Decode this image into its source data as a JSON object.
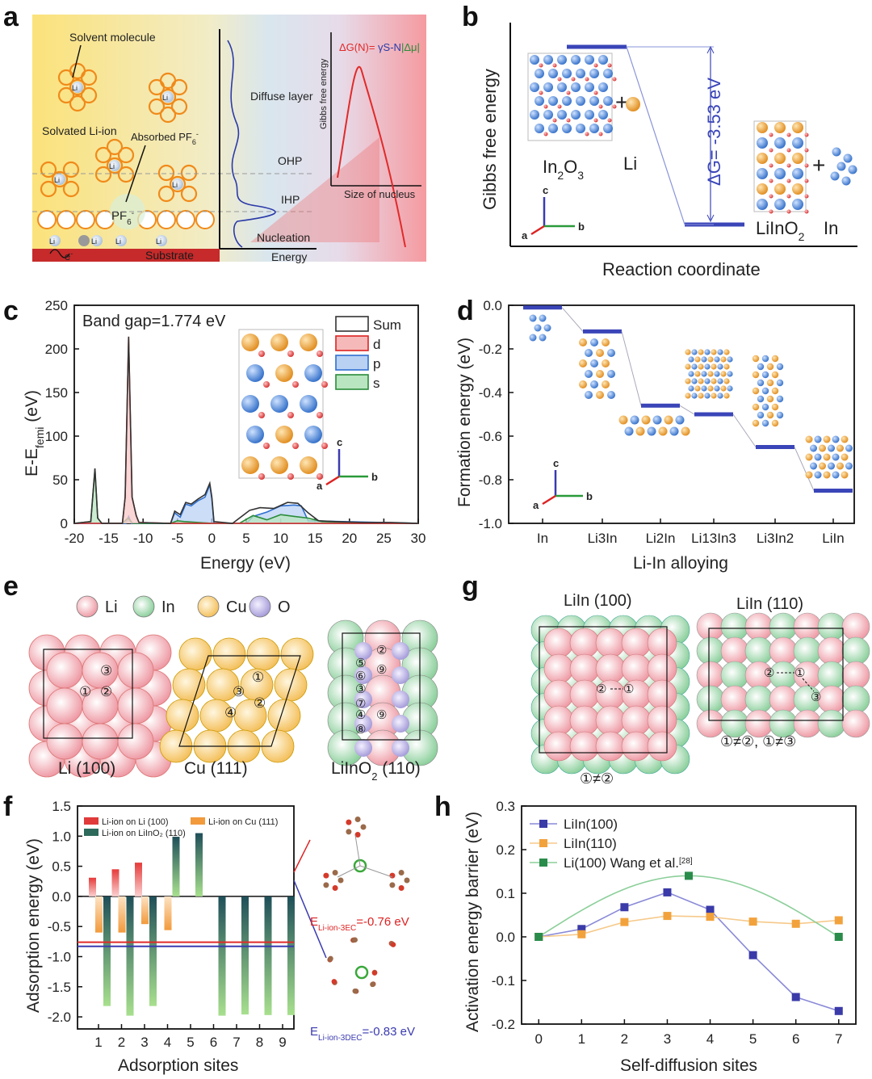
{
  "panel_labels": {
    "a": "a",
    "b": "b",
    "c": "c",
    "d": "d",
    "e": "e",
    "f": "f",
    "g": "g",
    "h": "h"
  },
  "panel_a": {
    "solvent_molecule": "Solvent molecule",
    "solvated_li_ion": "Solvated Li-ion",
    "absorbed_pf6": "Absorbed PF",
    "absorbed_pf6_sub": "6",
    "absorbed_pf6_sup": "-",
    "pf6": "PF",
    "pf6_sub": "6",
    "pf6_sup": "-",
    "li_plus": "Li",
    "electron": "e",
    "electron_sup": "-",
    "substrate": "Substrate",
    "diffuse_layer": "Diffuse layer",
    "ohp": "OHP",
    "ihp": "IHP",
    "nucleation": "Nucleation",
    "energy": "Energy",
    "gibbs_label": "Gibbs free energy",
    "size_of_nucleus": "Size of nucleus",
    "eq_part1": "ΔG(N)=",
    "eq_part2": " γS-N",
    "eq_part3": "|Δμ|"
  },
  "panel_b": {
    "ylabel": "Gibbs free energy",
    "xlabel": "Reaction coordinate",
    "in2o3": "In",
    "in2o3_sub1": "2",
    "in2o3_o": "O",
    "in2o3_sub2": "3",
    "li": "Li",
    "liino2": "LiInO",
    "liino2_sub": "2",
    "in": "In",
    "delta_g": "ΔG= -3.53 eV",
    "axis_c": "c",
    "axis_b": "b",
    "axis_a": "a"
  },
  "panel_c": {
    "band_gap": "Band gap=1.774 eV",
    "ylabel_main": "E-E",
    "ylabel_sub": "femi",
    "ylabel_unit": " (eV)",
    "xlabel": "Energy (eV)",
    "legend": [
      "Sum",
      "d",
      "p",
      "s"
    ],
    "axis_c": "c",
    "axis_b": "b",
    "axis_a": "a"
  },
  "panel_d": {
    "ylabel": "Formation energy (eV)",
    "xlabel": "Li-In alloying",
    "axis_c": "c",
    "axis_b": "b",
    "axis_a": "a"
  },
  "panel_e": {
    "legend": [
      "Li",
      "In",
      "Cu",
      "O"
    ],
    "li100": "Li (100)",
    "cu111": "Cu (111)",
    "liino2_110": "LiInO",
    "liino2_110_sub": "2",
    "liino2_110_rest": " (110)",
    "site_labels": [
      "①",
      "②",
      "③",
      "④",
      "⑤",
      "⑥",
      "⑦",
      "⑧",
      "⑨"
    ]
  },
  "panel_g": {
    "liin100": "LiIn (100)",
    "liin110": "LiIn (110)",
    "note_100": "①≠②",
    "note_110": "①≠②, ①≠③",
    "site_labels": [
      "①",
      "②",
      "③"
    ]
  },
  "panel_f": {
    "ylabel": "Adsorption energy (eV)",
    "xlabel": "Adsorption sites",
    "legend": [
      "Li-ion on Li (100)",
      "Li-ion on Cu (111)",
      "Li-ion on LiInO₂ (110)"
    ],
    "e3ec_label": "E",
    "e3ec_sub": "Li-ion-3EC",
    "e3ec_val": "=-0.76 eV",
    "e3dec_label": "E",
    "e3dec_sub": "Li-ion-3DEC",
    "e3dec_val": "=-0.83 eV"
  },
  "panel_h": {
    "ylabel": "Activation energy barrier (eV)",
    "xlabel": "Self-diffusion sites",
    "legend_ref": "[28]"
  },
  "chart_data": [
    {
      "type": "line",
      "panel": "b",
      "title": "",
      "xlabel": "Reaction coordinate",
      "ylabel": "Gibbs free energy",
      "categories": [
        "In2O3 + Li",
        "LiInO2 + In"
      ],
      "annotation": "ΔG= -3.53 eV",
      "values": [
        0,
        -3.53
      ]
    },
    {
      "type": "area",
      "panel": "c",
      "title": "Band gap=1.774 eV",
      "xlabel": "Energy (eV)",
      "ylabel": "E-Efemi (eV)",
      "xlim": [
        -20,
        30
      ],
      "ylim": [
        0,
        250
      ],
      "xticks": [
        -20,
        -15,
        -10,
        -5,
        0,
        5,
        10,
        15,
        20,
        25,
        30
      ],
      "yticks": [
        0,
        50,
        100,
        150,
        200,
        250
      ],
      "legend_position": "top-right",
      "series": [
        {
          "name": "Sum",
          "color": "#333333",
          "x": [
            -20,
            -17.6,
            -17,
            -16.6,
            -16,
            -13,
            -12.6,
            -12.1,
            -11.6,
            -11,
            -10.6,
            -6,
            -5.4,
            -4.6,
            -3.8,
            -3,
            -2,
            -1,
            -0.3,
            0,
            0.3,
            3,
            5.5,
            7,
            9,
            11,
            12.5,
            14,
            15.5,
            18,
            22,
            26,
            30
          ],
          "y": [
            0,
            2,
            63,
            6,
            0,
            0,
            30,
            214,
            30,
            9,
            1,
            0,
            14,
            10,
            24,
            22,
            28,
            33,
            46,
            30,
            2,
            0,
            15,
            18,
            17,
            24,
            23,
            12,
            3,
            2,
            1,
            1,
            0
          ]
        },
        {
          "name": "d",
          "color": "#e03a3a",
          "x": [
            -20,
            -13,
            -12.6,
            -12.1,
            -11.6,
            -11,
            -10.6,
            -6,
            30
          ],
          "y": [
            0,
            0,
            30,
            214,
            30,
            9,
            1,
            0,
            0
          ]
        },
        {
          "name": "p",
          "color": "#2e6fd1",
          "x": [
            -20,
            -12.5,
            -12.1,
            -11.7,
            -6,
            -5.4,
            -4.6,
            -3.8,
            -3,
            -2,
            -1,
            -0.3,
            0,
            0.3,
            5,
            6,
            8,
            10,
            12,
            13,
            14,
            30
          ],
          "y": [
            0,
            0,
            8,
            0,
            0,
            12,
            7,
            22,
            20,
            26,
            30,
            44,
            28,
            0,
            0,
            8,
            13,
            20,
            21,
            20,
            3,
            0
          ]
        },
        {
          "name": "s",
          "color": "#2a8c3a",
          "x": [
            -20,
            -17.6,
            -17,
            -16.6,
            -16,
            -13,
            -12.2,
            -11.5,
            -6,
            -5,
            -4,
            0,
            4,
            6,
            8,
            10,
            12,
            14,
            16,
            20,
            30
          ],
          "y": [
            0,
            2,
            62,
            6,
            0,
            0,
            6,
            0,
            0,
            3,
            2,
            0,
            0,
            9,
            4,
            10,
            8,
            6,
            2,
            1,
            0
          ]
        }
      ]
    },
    {
      "type": "line",
      "panel": "d",
      "title": "",
      "xlabel": "Li-In alloying",
      "ylabel": "Formation energy (eV)",
      "categories": [
        "In",
        "Li3In",
        "Li2In",
        "Li13In3",
        "Li3In2",
        "LiIn"
      ],
      "values": [
        -0.01,
        -0.12,
        -0.46,
        -0.5,
        -0.65,
        -0.85
      ],
      "ylim": [
        -1.0,
        0.0
      ],
      "yticks": [
        0.0,
        -0.2,
        -0.4,
        -0.6,
        -0.8,
        -1.0
      ]
    },
    {
      "type": "bar",
      "panel": "f",
      "title": "",
      "xlabel": "Adsorption sites",
      "ylabel": "Adsorption energy (eV)",
      "categories": [
        "1",
        "2",
        "3",
        "4",
        "5",
        "6",
        "7",
        "8",
        "9"
      ],
      "ylim": [
        -2.2,
        1.5
      ],
      "yticks": [
        1.5,
        1.0,
        0.5,
        0.0,
        -0.5,
        -1.0,
        -1.5,
        -2.0
      ],
      "legend_position": "top",
      "reference_lines": [
        -0.76,
        -0.83
      ],
      "series": [
        {
          "name": "Li-ion on Li (100)",
          "color": "#e03a3a",
          "values": [
            0.31,
            0.45,
            0.56,
            null,
            null,
            null,
            null,
            null,
            null
          ]
        },
        {
          "name": "Li-ion on Cu (111)",
          "color": "#f29a3c",
          "values": [
            -0.6,
            -0.6,
            -0.46,
            -0.56,
            null,
            null,
            null,
            null,
            null
          ]
        },
        {
          "name": "Li-ion on LiInO2 (110)",
          "color": "#3f8f6a",
          "values": [
            -1.82,
            -1.98,
            -1.82,
            0.99,
            1.05,
            -1.98,
            -1.96,
            -1.97,
            -1.97
          ]
        }
      ]
    },
    {
      "type": "line",
      "panel": "h",
      "title": "",
      "xlabel": "Self-diffusion sites",
      "ylabel": "Activation energy barrier (eV)",
      "xlim": [
        -0.4,
        7.4
      ],
      "ylim": [
        -0.2,
        0.3
      ],
      "xticks": [
        0,
        1,
        2,
        3,
        4,
        5,
        6,
        7
      ],
      "yticks": [
        0.3,
        0.2,
        0.1,
        0.0,
        -0.1,
        -0.2
      ],
      "legend_position": "top-left",
      "series": [
        {
          "name": "LiIn(100)",
          "color": "#3a3aa8",
          "x": [
            0,
            1,
            2,
            3,
            4,
            5,
            6,
            7
          ],
          "y": [
            0.0,
            0.018,
            0.068,
            0.102,
            0.062,
            -0.042,
            -0.138,
            -0.17
          ]
        },
        {
          "name": "LiIn(110)",
          "color": "#f2a23c",
          "x": [
            0,
            1,
            2,
            3,
            4,
            5,
            6,
            7
          ],
          "y": [
            0.0,
            0.006,
            0.034,
            0.048,
            0.046,
            0.035,
            0.03,
            0.038
          ]
        },
        {
          "name": "Li(100) Wang et al.",
          "color": "#2a8c4a",
          "x": [
            0,
            3.5,
            7
          ],
          "y": [
            0.0,
            0.14,
            0.0
          ]
        }
      ]
    }
  ]
}
